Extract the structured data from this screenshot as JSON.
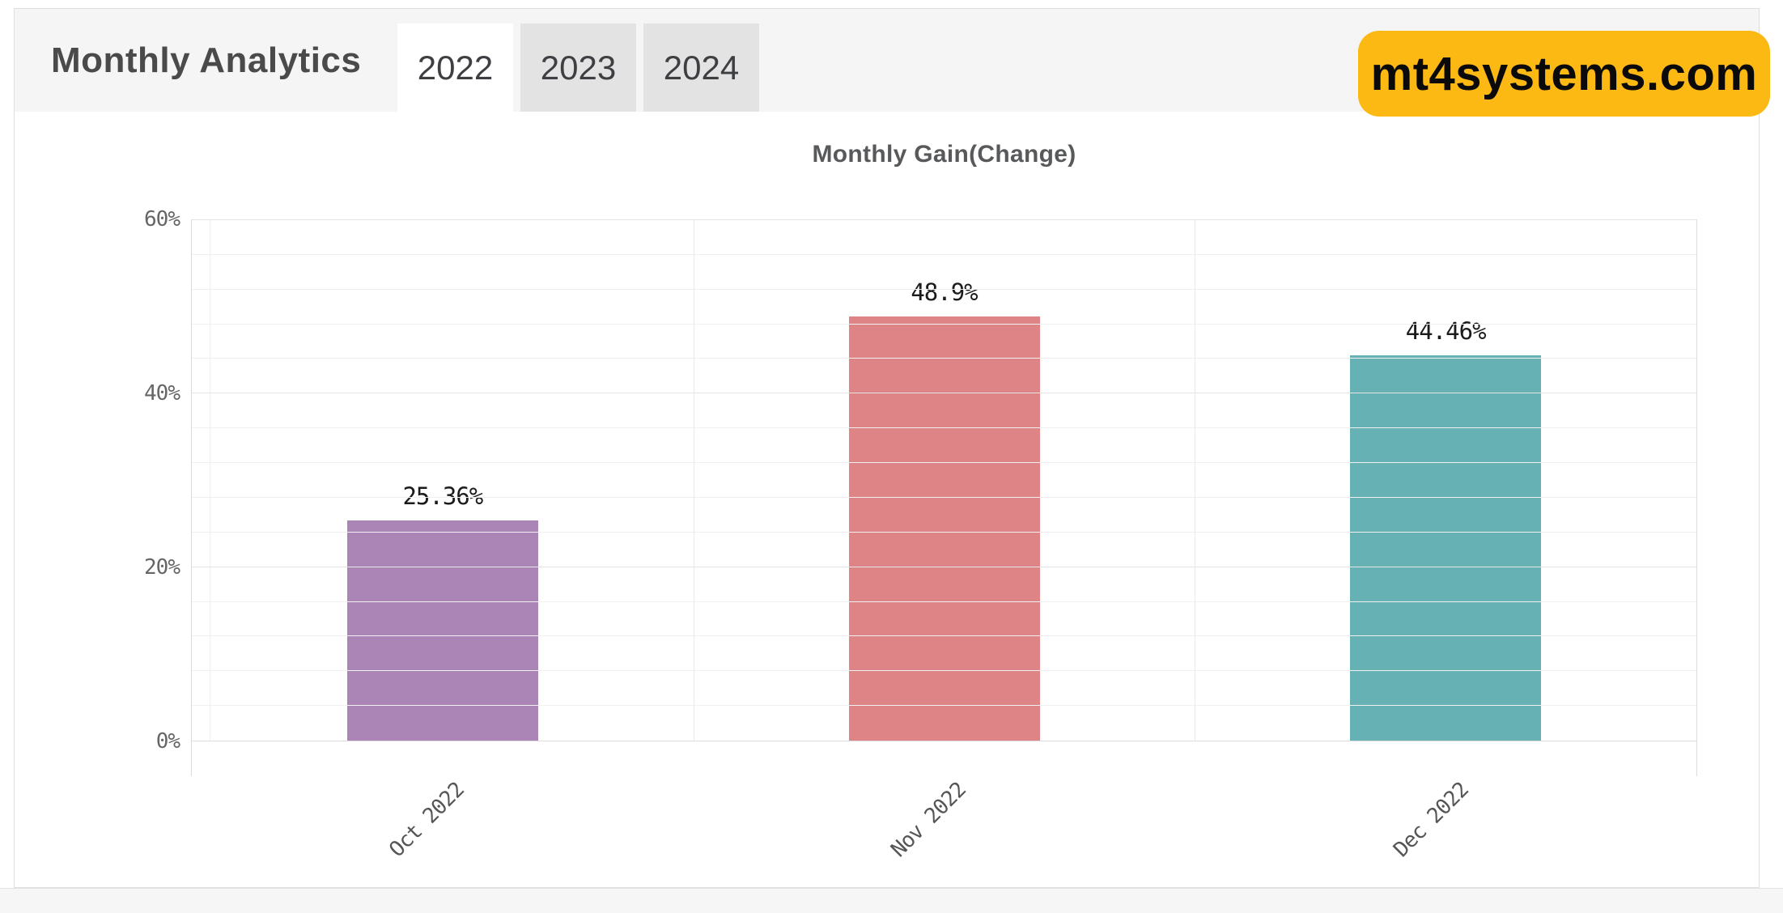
{
  "header": {
    "title": "Monthly Analytics",
    "tabs": [
      {
        "label": "2022",
        "active": true
      },
      {
        "label": "2023",
        "active": false
      },
      {
        "label": "2024",
        "active": false
      }
    ],
    "badge": {
      "label": "mt4systems.com",
      "bg": "#fcb813"
    }
  },
  "chart_data": {
    "type": "bar",
    "title": "Monthly Gain(Change)",
    "categories": [
      "Oct 2022",
      "Nov 2022",
      "Dec 2022"
    ],
    "values": [
      25.36,
      48.9,
      44.46
    ],
    "value_labels": [
      "25.36%",
      "48.9%",
      "44.46%"
    ],
    "bar_colors": [
      "#ab85b5",
      "#de8487",
      "#66b1b4"
    ],
    "xlabel": "",
    "ylabel": "",
    "ylim": [
      0,
      60
    ],
    "ytick_values": [
      0,
      20,
      40,
      60
    ],
    "ytick_labels": [
      "0%",
      "20%",
      "40%",
      "60%"
    ],
    "minor_grid_step": 4,
    "grid": "on",
    "legend": "off",
    "bar_label_rotation_deg": -45
  }
}
